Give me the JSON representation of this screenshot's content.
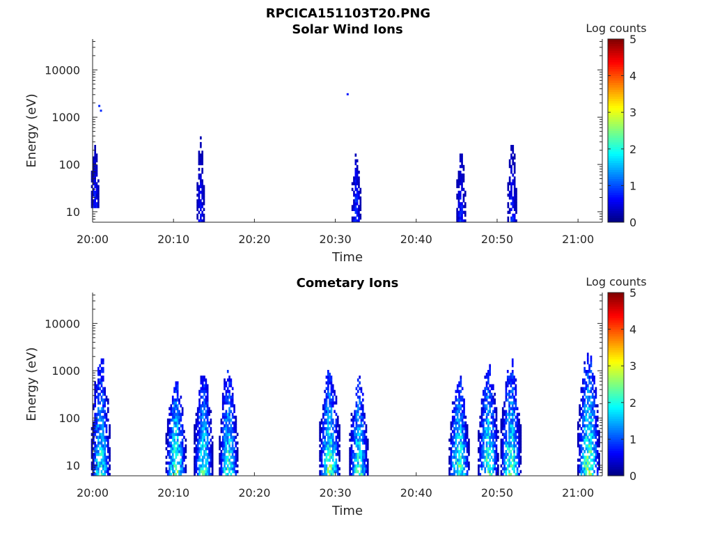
{
  "figure_title": "RPCICA151103T20.PNG",
  "colormap": [
    "#00007f",
    "#0000ff",
    "#007fff",
    "#00ffff",
    "#7fff7f",
    "#ffff00",
    "#ff7f00",
    "#ff0000",
    "#7f0000"
  ],
  "chart_data": [
    {
      "type": "heatmap",
      "title": "Solar Wind Ions",
      "xlabel": "Time",
      "ylabel": "Energy (eV)",
      "x_ticks": [
        "20:00",
        "20:10",
        "20:20",
        "20:30",
        "20:40",
        "20:50",
        "21:00"
      ],
      "y_ticks": [
        "10",
        "100",
        "1000",
        "10000"
      ],
      "y_scale": "log",
      "xlim_minutes": [
        0,
        63
      ],
      "ylim_eV": [
        6,
        45000
      ],
      "colorbar": {
        "label": "Log counts",
        "ticks": [
          "0",
          "1",
          "2",
          "3",
          "4",
          "5"
        ],
        "range": [
          0,
          5
        ]
      },
      "bursts": [
        {
          "t": 0.3,
          "width": 1.0,
          "emin": 12,
          "emax": 300,
          "peak": 0.9
        },
        {
          "t": 13.3,
          "width": 0.9,
          "emin": 6,
          "emax": 350,
          "peak": 0.8
        },
        {
          "t": 32.6,
          "width": 1.2,
          "emin": 6,
          "emax": 180,
          "peak": 1.1
        },
        {
          "t": 45.5,
          "width": 1.1,
          "emin": 6,
          "emax": 220,
          "peak": 0.9
        },
        {
          "t": 51.8,
          "width": 1.1,
          "emin": 6,
          "emax": 280,
          "peak": 0.9
        }
      ],
      "isolated_points": [
        {
          "t": 0.7,
          "e": 1700,
          "value": 0.8
        },
        {
          "t": 0.9,
          "e": 1350,
          "value": 0.8
        },
        {
          "t": 31.4,
          "e": 3000,
          "value": 0.7
        }
      ]
    },
    {
      "type": "heatmap",
      "title": "Cometary Ions",
      "xlabel": "Time",
      "ylabel": "Energy (eV)",
      "x_ticks": [
        "20:00",
        "20:10",
        "20:20",
        "20:30",
        "20:40",
        "20:50",
        "21:00"
      ],
      "y_ticks": [
        "10",
        "100",
        "1000",
        "10000"
      ],
      "y_scale": "log",
      "xlim_minutes": [
        0,
        63
      ],
      "ylim_eV": [
        6,
        45000
      ],
      "colorbar": {
        "label": "Log counts",
        "ticks": [
          "0",
          "1",
          "2",
          "3",
          "4",
          "5"
        ],
        "range": [
          0,
          5
        ]
      },
      "bursts": [
        {
          "t": 1.0,
          "width": 2.4,
          "emin": 6,
          "emax": 2000,
          "peak": 2.2
        },
        {
          "t": 10.3,
          "width": 2.6,
          "emin": 6,
          "emax": 550,
          "peak": 2.6
        },
        {
          "t": 13.7,
          "width": 2.4,
          "emin": 6,
          "emax": 900,
          "peak": 2.3
        },
        {
          "t": 16.8,
          "width": 2.4,
          "emin": 6,
          "emax": 1000,
          "peak": 2.4
        },
        {
          "t": 29.3,
          "width": 2.6,
          "emin": 6,
          "emax": 1100,
          "peak": 2.6
        },
        {
          "t": 32.9,
          "width": 2.4,
          "emin": 6,
          "emax": 600,
          "peak": 2.4
        },
        {
          "t": 45.3,
          "width": 2.6,
          "emin": 6,
          "emax": 700,
          "peak": 2.5
        },
        {
          "t": 48.9,
          "width": 2.6,
          "emin": 6,
          "emax": 1200,
          "peak": 2.4
        },
        {
          "t": 51.7,
          "width": 2.6,
          "emin": 6,
          "emax": 1400,
          "peak": 2.5
        },
        {
          "t": 61.3,
          "width": 2.8,
          "emin": 6,
          "emax": 2500,
          "peak": 2.7
        }
      ],
      "isolated_points": []
    }
  ]
}
